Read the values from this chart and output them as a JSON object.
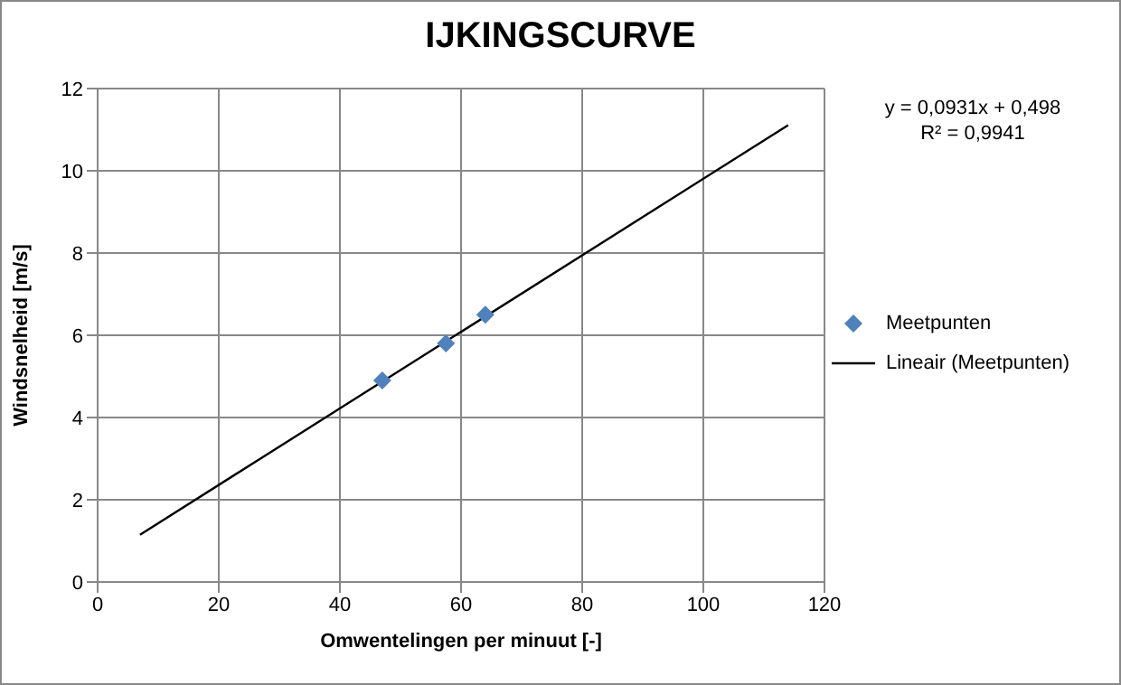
{
  "chart_data": {
    "type": "scatter",
    "title": "IJKINGSCURVE",
    "xlabel": "Omwentelingen per minuut [-]",
    "ylabel": "Windsnelheid [m/s]",
    "series": [
      {
        "name": "Meetpunten",
        "color": "#4f81bd",
        "x": [
          47,
          57.5,
          64
        ],
        "values": [
          4.9,
          5.8,
          6.5
        ],
        "marker": "diamond"
      },
      {
        "name": "Lineair (Meetpunten)",
        "type": "line",
        "color": "#000000",
        "x": [
          7,
          114
        ],
        "values": [
          1.15,
          11.11
        ],
        "marker": "none"
      }
    ],
    "annotations": [
      "y = 0,0931x + 0,498",
      "R² = 0,9941"
    ],
    "xlim": [
      0,
      120
    ],
    "xticks": [
      0,
      20,
      40,
      60,
      80,
      100,
      120
    ],
    "ylim": [
      0,
      12
    ],
    "yticks": [
      0,
      2,
      4,
      6,
      8,
      10,
      12
    ],
    "grid": true,
    "legend": "right"
  }
}
